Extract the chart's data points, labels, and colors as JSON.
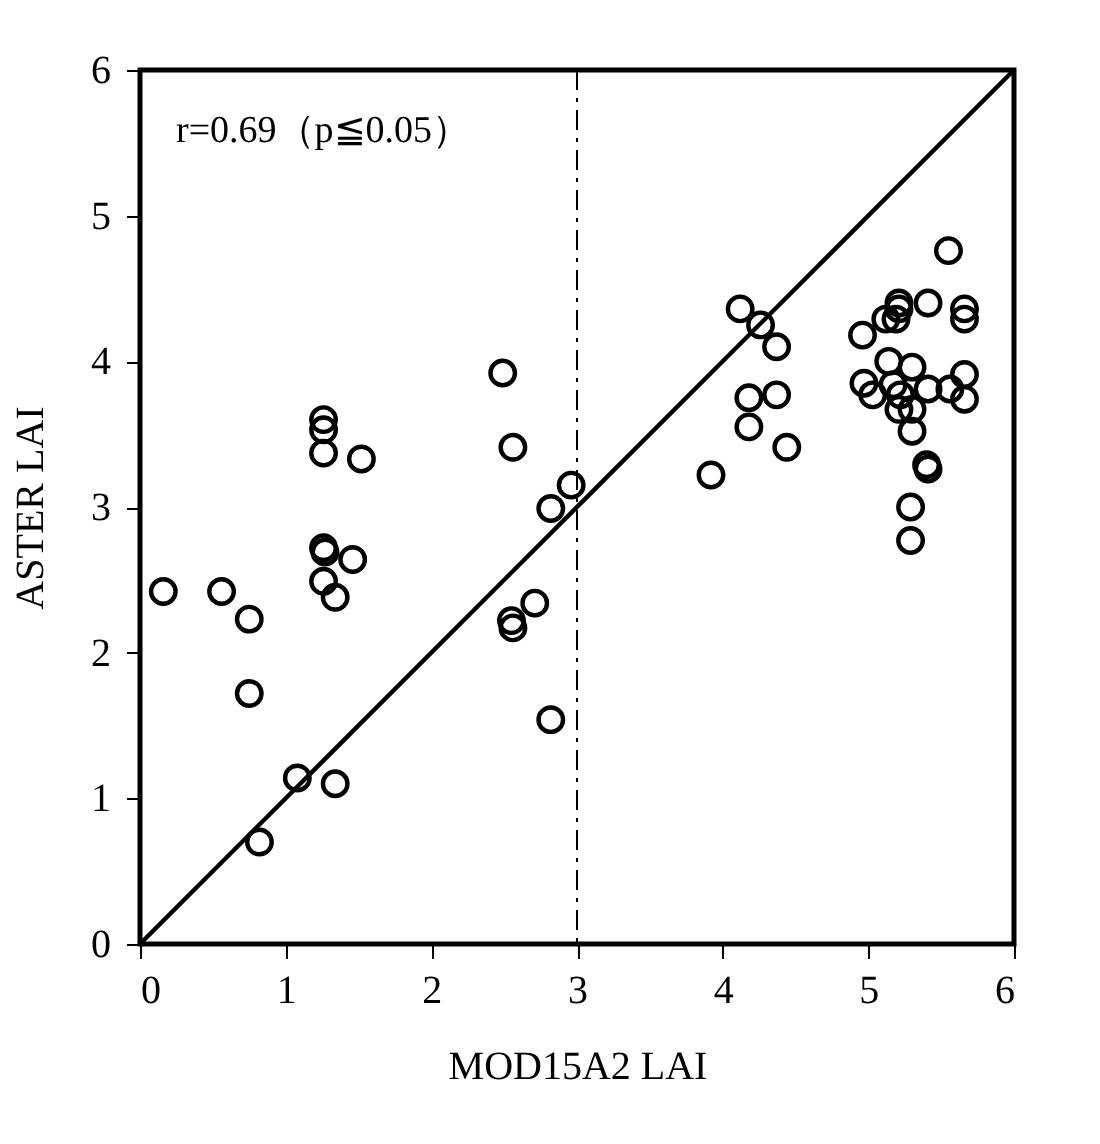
{
  "chart_data": {
    "type": "scatter",
    "xlabel": "MOD15A2  LAI",
    "ylabel": "ASTER  LAI",
    "annotations": [
      "r=0.69（p≦0.05）"
    ],
    "xlim": [
      0,
      6
    ],
    "ylim": [
      0,
      6
    ],
    "xticks": [
      0,
      1,
      2,
      3,
      4,
      5,
      6
    ],
    "yticks": [
      0,
      1,
      2,
      3,
      4,
      5,
      6
    ],
    "grid": false,
    "marker": "circle",
    "series": [
      {
        "color": "#000000",
        "x": [
          0.16,
          0.56,
          0.75,
          0.75,
          0.82,
          1.08,
          1.34,
          1.26,
          1.26,
          1.26,
          1.52,
          1.26,
          1.27,
          1.46,
          1.26,
          1.34,
          2.49,
          2.56,
          2.96,
          2.82,
          2.71,
          2.55,
          2.56,
          2.82,
          5.55,
          4.12,
          4.26,
          4.37,
          4.18,
          4.37,
          4.18,
          4.44,
          3.92,
          4.96,
          5.21,
          5.21,
          5.19,
          5.12,
          5.41,
          5.66,
          5.66,
          5.14,
          5.3,
          5.66,
          4.97,
          5.03,
          5.17,
          5.22,
          5.41,
          5.56,
          5.66,
          5.21,
          5.3,
          5.3,
          5.4,
          5.41,
          5.29,
          5.29
        ],
        "values": [
          2.42,
          2.42,
          2.23,
          1.72,
          0.7,
          1.14,
          1.1,
          3.6,
          3.53,
          3.37,
          3.33,
          2.72,
          2.69,
          2.64,
          2.49,
          2.38,
          3.92,
          3.41,
          3.15,
          2.99,
          2.34,
          2.22,
          2.17,
          1.54,
          4.76,
          4.36,
          4.25,
          4.1,
          3.75,
          3.77,
          3.55,
          3.41,
          3.22,
          4.18,
          4.4,
          4.36,
          4.29,
          4.29,
          4.4,
          4.36,
          4.29,
          4.0,
          3.96,
          3.91,
          3.85,
          3.77,
          3.84,
          3.77,
          3.81,
          3.81,
          3.74,
          3.67,
          3.67,
          3.52,
          3.29,
          3.26,
          3.0,
          2.77
        ]
      },
      {
        "type": "line",
        "color": "#000000",
        "line_style": "solid",
        "marker": "none",
        "x": [
          0,
          6
        ],
        "values": [
          0,
          6
        ]
      }
    ],
    "ref_lines": [
      {
        "axis": "x",
        "value": 3,
        "color": "#000000",
        "line_style": "dashdot"
      }
    ]
  }
}
